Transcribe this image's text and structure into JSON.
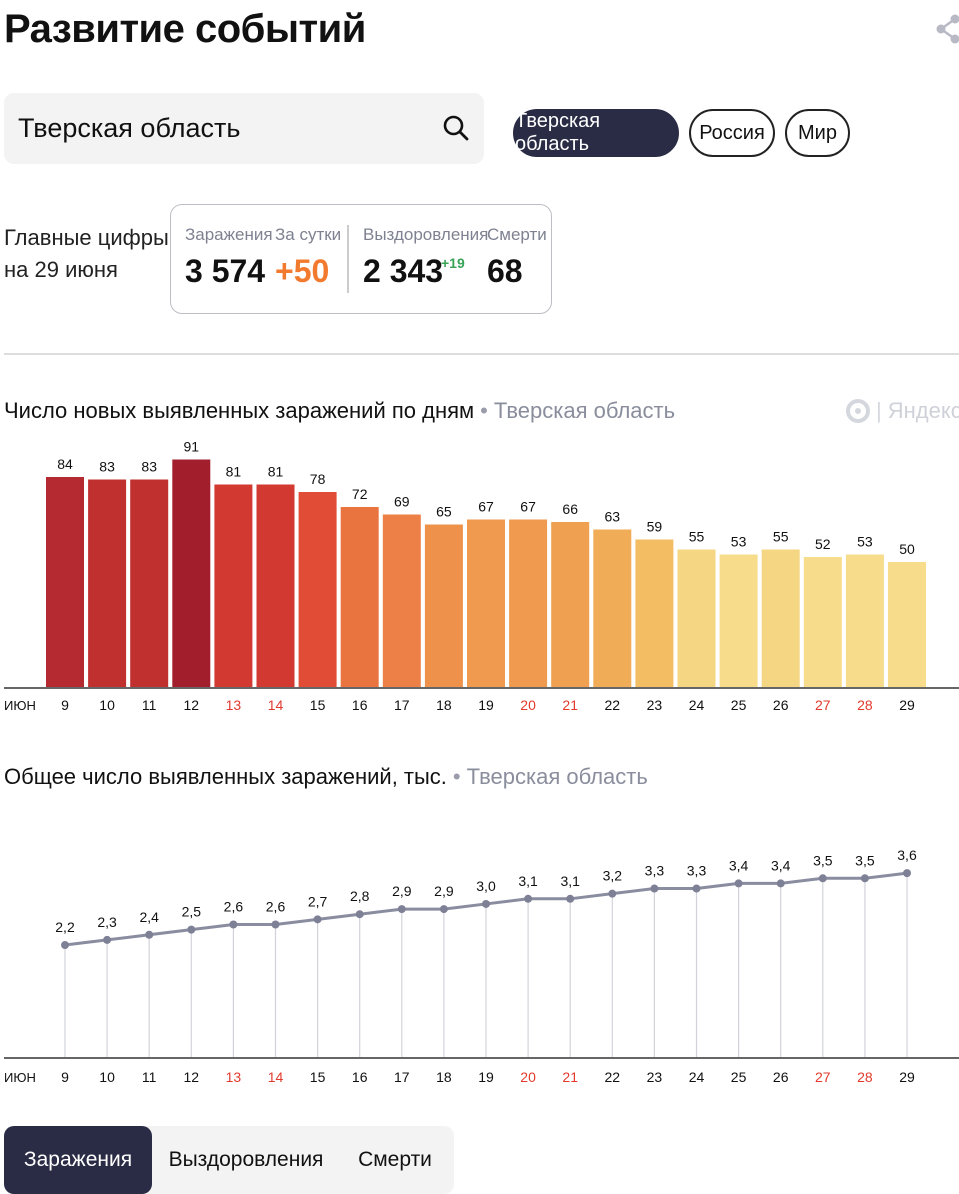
{
  "page": {
    "title": "Развитие событий"
  },
  "search": {
    "value": "Тверская область"
  },
  "regions": [
    {
      "label": "Тверская область",
      "active": true
    },
    {
      "label": "Россия",
      "active": false
    },
    {
      "label": "Мир",
      "active": false
    }
  ],
  "main_figures": {
    "label_line1": "Главные цифры",
    "label_line2": "на 29 июня",
    "infections_label": "Заражения",
    "infections_value": "3 574",
    "daily_label": "За сутки",
    "daily_value": "+50",
    "recovered_label": "Выздоровления",
    "recovered_value": "2 343",
    "recovered_delta": "+19",
    "deaths_label": "Смерти",
    "deaths_value": "68"
  },
  "chart1_header": {
    "title": "Число новых выявленных заражений по дням",
    "region": "Тверская область"
  },
  "chart2_header": {
    "title": "Общее число выявленных заражений, тыс.",
    "region": "Тверская область"
  },
  "brand": {
    "logo_text": "Яндекс"
  },
  "tabs": [
    {
      "label": "Заражения",
      "active": true
    },
    {
      "label": "Выздоровления",
      "active": false
    },
    {
      "label": "Смерти",
      "active": false
    }
  ],
  "colors": {
    "accent_dark": "#2a2c45",
    "weekend_red": "#e23b2e",
    "green": "#37a356",
    "orange": "#f27a2e"
  },
  "chart_data": [
    {
      "type": "bar",
      "title": "Число новых выявленных заражений по дням",
      "axis_prefix": "ИЮН",
      "categories": [
        "9",
        "10",
        "11",
        "12",
        "13",
        "14",
        "15",
        "16",
        "17",
        "18",
        "19",
        "20",
        "21",
        "22",
        "23",
        "24",
        "25",
        "26",
        "27",
        "28",
        "29"
      ],
      "weekend_categories": [
        "13",
        "14",
        "20",
        "21",
        "27",
        "28"
      ],
      "values": [
        84,
        83,
        83,
        91,
        81,
        81,
        78,
        72,
        69,
        65,
        67,
        67,
        66,
        63,
        59,
        55,
        53,
        55,
        52,
        53,
        50
      ],
      "value_labels": [
        "84",
        "83",
        "83",
        "91",
        "81",
        "81",
        "78",
        "72",
        "69",
        "65",
        "67",
        "67",
        "66",
        "63",
        "59",
        "55",
        "53",
        "55",
        "52",
        "53",
        "50"
      ],
      "colors": [
        "#b52a30",
        "#c0302f",
        "#c0302f",
        "#a21e2d",
        "#d23a31",
        "#d23a31",
        "#e04c36",
        "#ea7440",
        "#ec8046",
        "#ee924b",
        "#ef9a4f",
        "#ef9a4f",
        "#efa050",
        "#f0ac57",
        "#f2bd63",
        "#f5d682",
        "#f6dc8b",
        "#f5d682",
        "#f6dc8b",
        "#f6dc8b",
        "#f6dc8b"
      ],
      "ylim": [
        0,
        100
      ]
    },
    {
      "type": "line",
      "title": "Общее число выявленных заражений, тыс.",
      "axis_prefix": "ИЮН",
      "categories": [
        "9",
        "10",
        "11",
        "12",
        "13",
        "14",
        "15",
        "16",
        "17",
        "18",
        "19",
        "20",
        "21",
        "22",
        "23",
        "24",
        "25",
        "26",
        "27",
        "28",
        "29"
      ],
      "weekend_categories": [
        "13",
        "14",
        "20",
        "21",
        "27",
        "28"
      ],
      "values": [
        2.2,
        2.3,
        2.4,
        2.5,
        2.6,
        2.6,
        2.7,
        2.8,
        2.9,
        2.9,
        3.0,
        3.1,
        3.1,
        3.2,
        3.3,
        3.3,
        3.4,
        3.4,
        3.5,
        3.5,
        3.6
      ],
      "value_labels": [
        "2,2",
        "2,3",
        "2,4",
        "2,5",
        "2,6",
        "2,6",
        "2,7",
        "2,8",
        "2,9",
        "2,9",
        "3,0",
        "3,1",
        "3,1",
        "3,2",
        "3,3",
        "3,3",
        "3,4",
        "3,4",
        "3,5",
        "3,5",
        "3,6"
      ],
      "line_color": "#8a8ca0",
      "ylim": [
        0,
        3.7
      ]
    }
  ]
}
